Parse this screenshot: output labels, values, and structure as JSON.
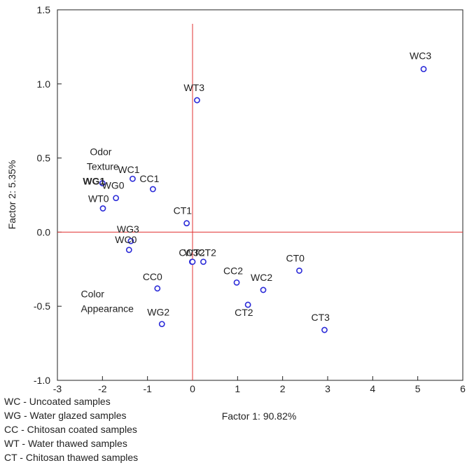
{
  "chart_data": {
    "type": "scatter",
    "xlabel": "Factor 1: 90.82%",
    "ylabel": "Factor 2:  5.35%",
    "xlim": [
      -3,
      6
    ],
    "ylim": [
      -1.0,
      1.5
    ],
    "xticks": [
      "-3",
      "-2",
      "-1",
      "0",
      "1",
      "2",
      "3",
      "4",
      "5",
      "6"
    ],
    "yticks": [
      "1.5",
      "1.0",
      "0.5",
      "0.0",
      "-0.5",
      "-1.0"
    ],
    "xtick_values": [
      -3,
      -2,
      -1,
      0,
      1,
      2,
      3,
      4,
      5,
      6
    ],
    "ytick_values": [
      1.5,
      1.0,
      0.5,
      0.0,
      -0.5,
      -1.0
    ],
    "reference_lines": {
      "x": 0,
      "y": 0,
      "color": "#e03030"
    },
    "marker_color": "#2a2ad8",
    "points": [
      {
        "label": "WC3",
        "x": 5.13,
        "y": 1.1
      },
      {
        "label": "WT3",
        "x": 0.1,
        "y": 0.89
      },
      {
        "label": "WC1",
        "x": -1.33,
        "y": 0.36
      },
      {
        "label": "CC1",
        "x": -0.88,
        "y": 0.29
      },
      {
        "label": "WG1",
        "x": -2.0,
        "y": 0.33
      },
      {
        "label": "WG0",
        "x": -1.7,
        "y": 0.23
      },
      {
        "label": "WT0",
        "x": -1.99,
        "y": 0.16
      },
      {
        "label": "CT1",
        "x": -0.13,
        "y": 0.06
      },
      {
        "label": "WG3",
        "x": -1.37,
        "y": -0.06
      },
      {
        "label": "WC0",
        "x": -1.41,
        "y": -0.12
      },
      {
        "label": "CC3",
        "x": -0.01,
        "y": -0.2
      },
      {
        "label": "WT2",
        "x": 0.0,
        "y": -0.2
      },
      {
        "label": "CT2",
        "x": 0.24,
        "y": -0.2
      },
      {
        "label": "CT0",
        "x": 2.37,
        "y": -0.26
      },
      {
        "label": "CC2",
        "x": 0.98,
        "y": -0.34
      },
      {
        "label": "WC2",
        "x": 1.57,
        "y": -0.39
      },
      {
        "label": "CT2",
        "x": 1.23,
        "y": -0.49
      },
      {
        "label": "CC0",
        "x": -0.78,
        "y": -0.38
      },
      {
        "label": "WG2",
        "x": -0.68,
        "y": -0.62
      },
      {
        "label": "CT3",
        "x": 2.93,
        "y": -0.66
      }
    ],
    "variables": [
      {
        "label": "Odor",
        "x": -2.28,
        "y": 0.52
      },
      {
        "label": "Texture",
        "x": -2.35,
        "y": 0.42
      },
      {
        "label": "Color",
        "x": -2.48,
        "y": -0.44
      },
      {
        "label": "Appearance",
        "x": -2.48,
        "y": -0.54
      }
    ],
    "legend": [
      "WC - Uncoated samples",
      "WG - Water glazed samples",
      "CC - Chitosan coated samples",
      "WT - Water thawed samples",
      "CT - Chitosan thawed samples"
    ]
  }
}
